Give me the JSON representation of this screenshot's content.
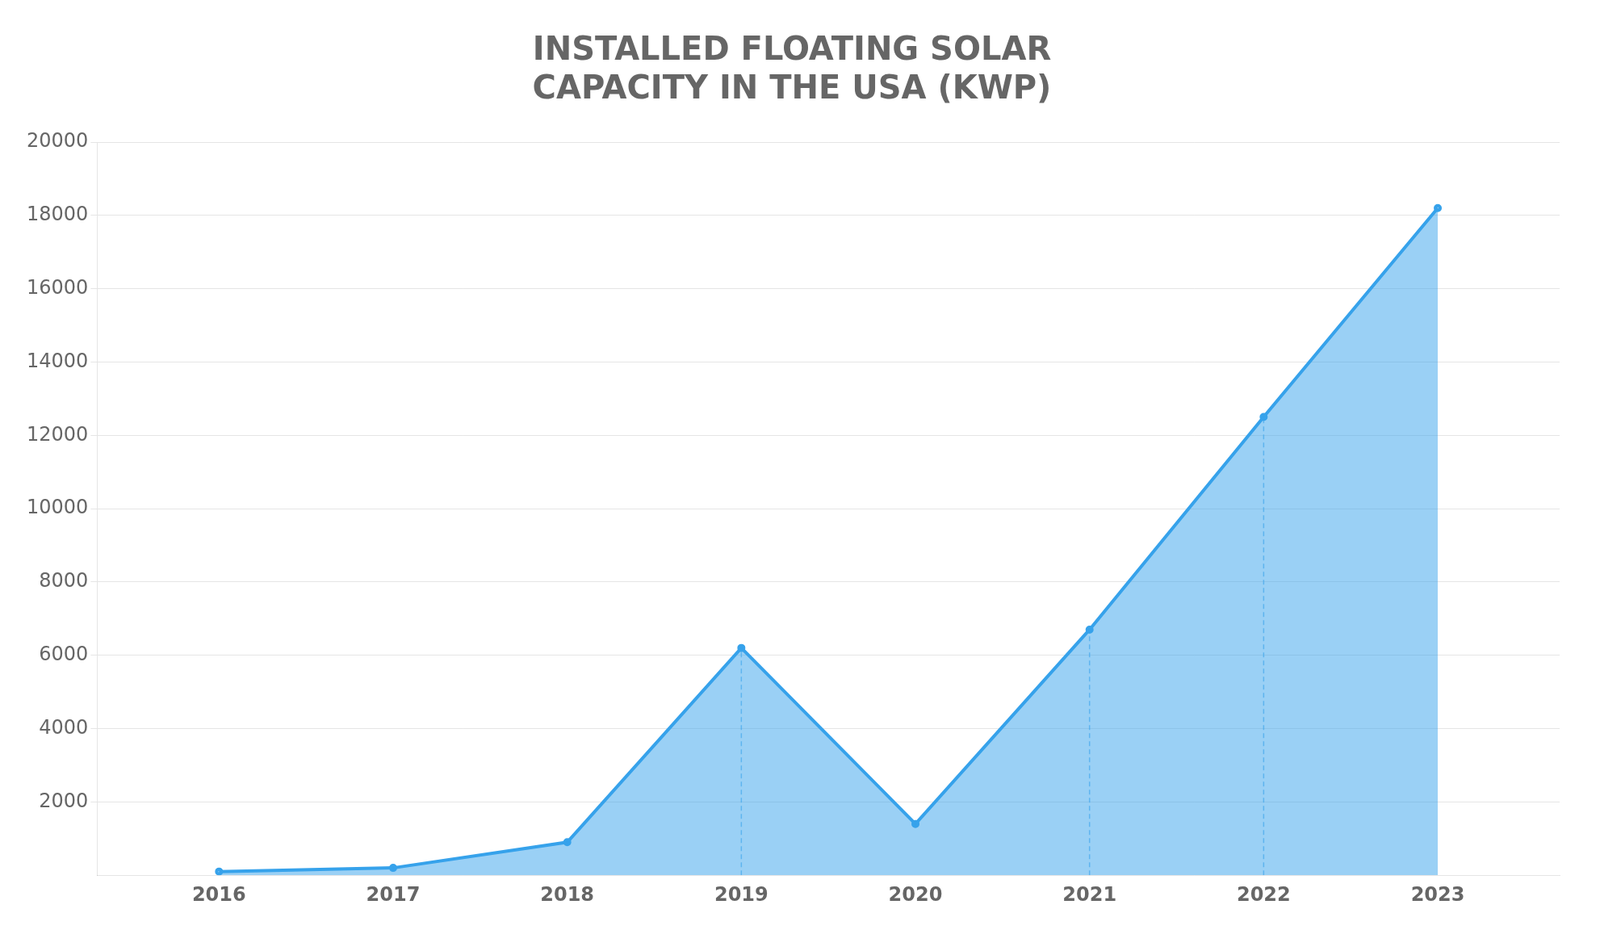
{
  "chart_data": {
    "type": "line",
    "title": "INSTALLED FLOATING SOLAR\nCAPACITY IN THE USA (KWP)",
    "x": [
      2016,
      2017,
      2018,
      2019,
      2020,
      2021,
      2022,
      2023
    ],
    "values": [
      100,
      200,
      900,
      6200,
      1400,
      6700,
      12500,
      18200
    ],
    "drop_lines": [
      2019,
      2021,
      2022
    ],
    "xlim": [
      2015.3,
      2023.7
    ],
    "xticks": [
      2016,
      2017,
      2018,
      2019,
      2020,
      2021,
      2022,
      2023
    ],
    "ylim": [
      0,
      20000
    ],
    "yticks": [
      2000,
      4000,
      6000,
      8000,
      10000,
      12000,
      14000,
      16000,
      18000,
      20000
    ],
    "grid": "y"
  }
}
